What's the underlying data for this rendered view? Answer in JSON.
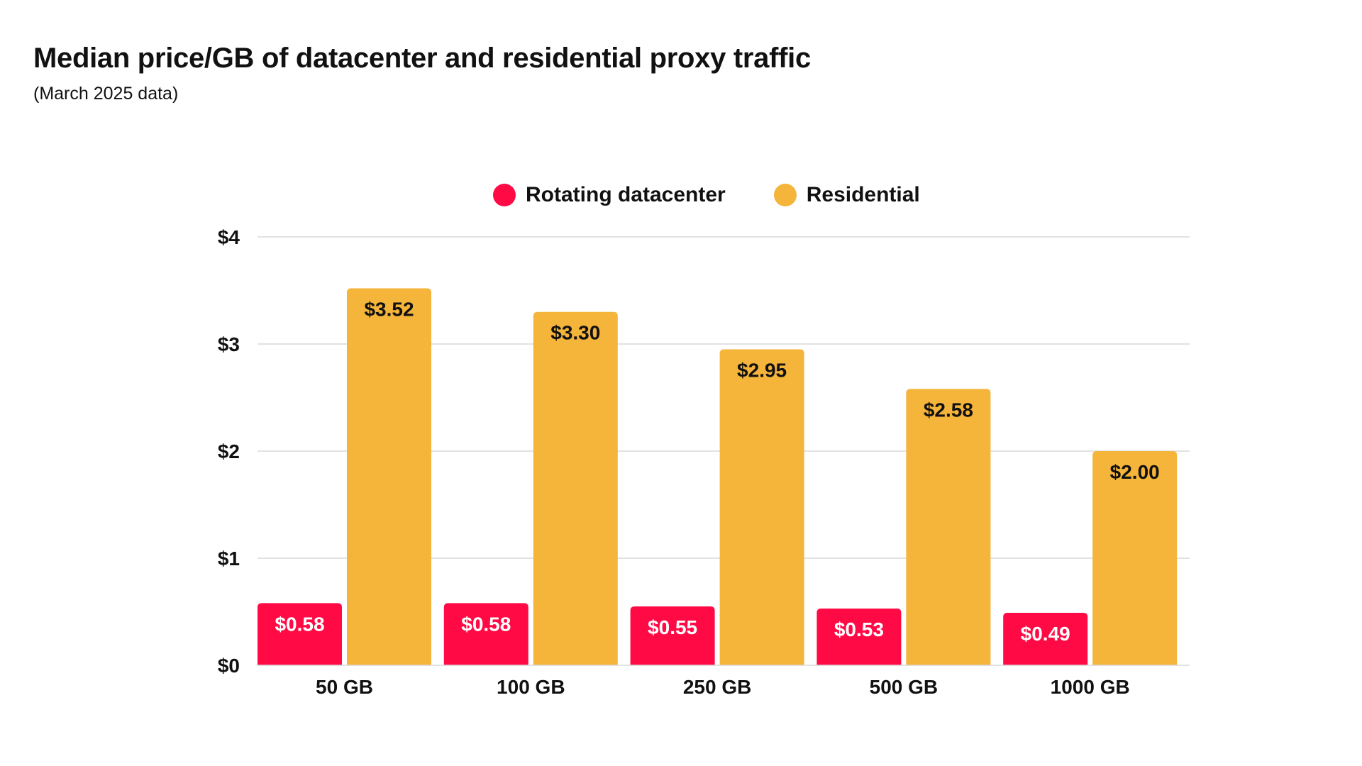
{
  "title": "Median price/GB of datacenter and residential proxy traffic",
  "subtitle": "(March 2025 data)",
  "legend": {
    "series0": "Rotating datacenter",
    "series1": "Residential"
  },
  "chart_data": {
    "type": "bar",
    "title": "Median price/GB of datacenter and residential proxy traffic",
    "subtitle": "(March 2025 data)",
    "xlabel": "",
    "ylabel": "",
    "categories": [
      "50 GB",
      "100 GB",
      "250 GB",
      "500 GB",
      "1000 GB"
    ],
    "series": [
      {
        "name": "Rotating datacenter",
        "color": "#FF0A45",
        "label_color": "#FFFFFF",
        "values": [
          0.58,
          0.58,
          0.55,
          0.53,
          0.49
        ],
        "labels": [
          "$0.58",
          "$0.58",
          "$0.55",
          "$0.53",
          "$0.49"
        ]
      },
      {
        "name": "Residential",
        "color": "#F5B43A",
        "label_color": "#111111",
        "values": [
          3.52,
          3.3,
          2.95,
          2.58,
          2.0
        ],
        "labels": [
          "$3.52",
          "$3.30",
          "$2.95",
          "$2.58",
          "$2.00"
        ]
      }
    ],
    "ylim": [
      0,
      4
    ],
    "yticks": [
      0,
      1,
      2,
      3,
      4
    ],
    "ytick_labels": [
      "$0",
      "$1",
      "$2",
      "$3",
      "$4"
    ],
    "grid": true,
    "legend_position": "top-center"
  }
}
